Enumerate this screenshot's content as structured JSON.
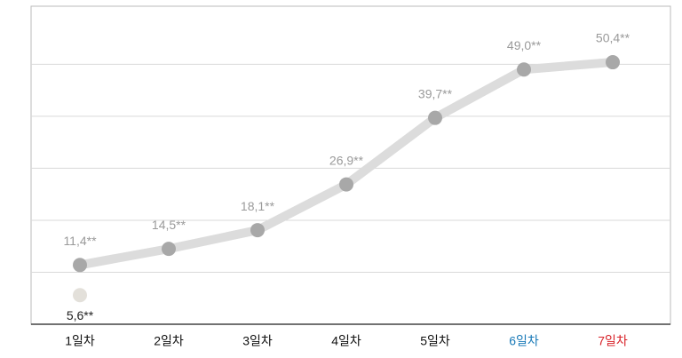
{
  "chart_data": {
    "type": "line",
    "categories": [
      "1일차",
      "2일차",
      "3일차",
      "4일차",
      "5일차",
      "6일차",
      "7일차"
    ],
    "category_colors": [
      "#111111",
      "#111111",
      "#111111",
      "#111111",
      "#111111",
      "#1a7ab8",
      "#d8232a"
    ],
    "series": [
      {
        "color": "#a8a8a8",
        "line_color": "#dcdcdc",
        "label_color": "#9a9a9a",
        "label_position": "above",
        "values": [
          11.4,
          14.5,
          18.1,
          26.9,
          39.7,
          49.0,
          50.4
        ],
        "value_labels": [
          "11,4**",
          "14,5**",
          "18,1**",
          "26,9**",
          "39,7**",
          "49,0**",
          "50,4**"
        ]
      },
      {
        "color": "#e3e0da",
        "label_color": "#222222",
        "label_position": "below",
        "values": [
          5.6,
          null,
          null,
          null,
          null,
          null,
          null
        ],
        "value_labels": [
          "5,6**",
          null,
          null,
          null,
          null,
          null,
          null
        ]
      }
    ],
    "ylim": [
      0,
      61
    ],
    "yticks": [
      10,
      20,
      30,
      40,
      50
    ],
    "grid": true
  }
}
